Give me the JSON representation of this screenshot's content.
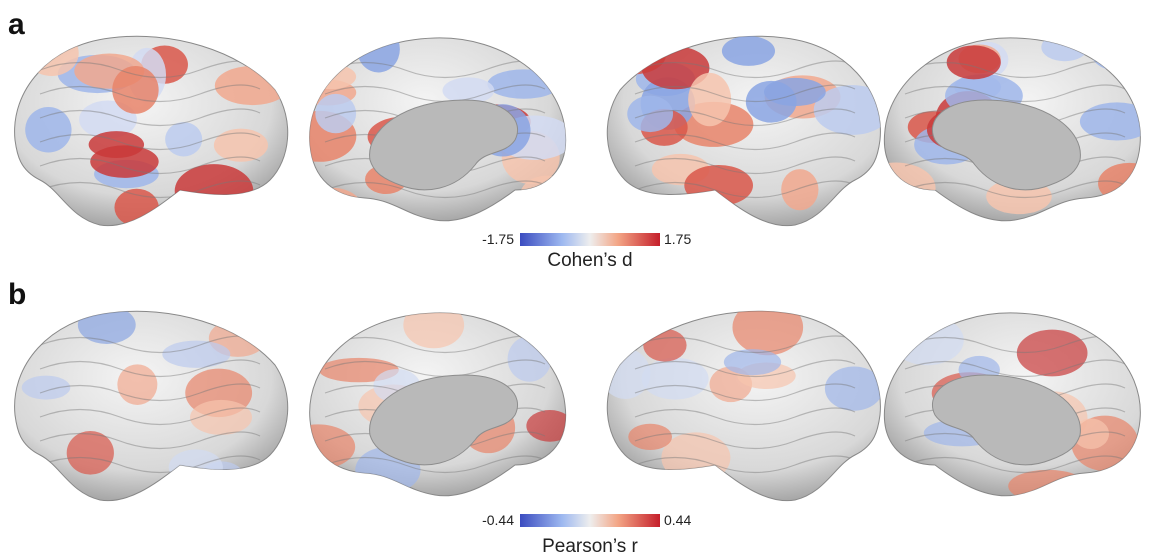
{
  "panels": [
    {
      "label": "a",
      "colorbar": {
        "min_label": "-1.75",
        "max_label": "1.75",
        "title": "Cohen’s d"
      }
    },
    {
      "label": "b",
      "colorbar": {
        "min_label": "-0.44",
        "max_label": "0.44",
        "title": "Pearson’s r"
      }
    }
  ]
}
